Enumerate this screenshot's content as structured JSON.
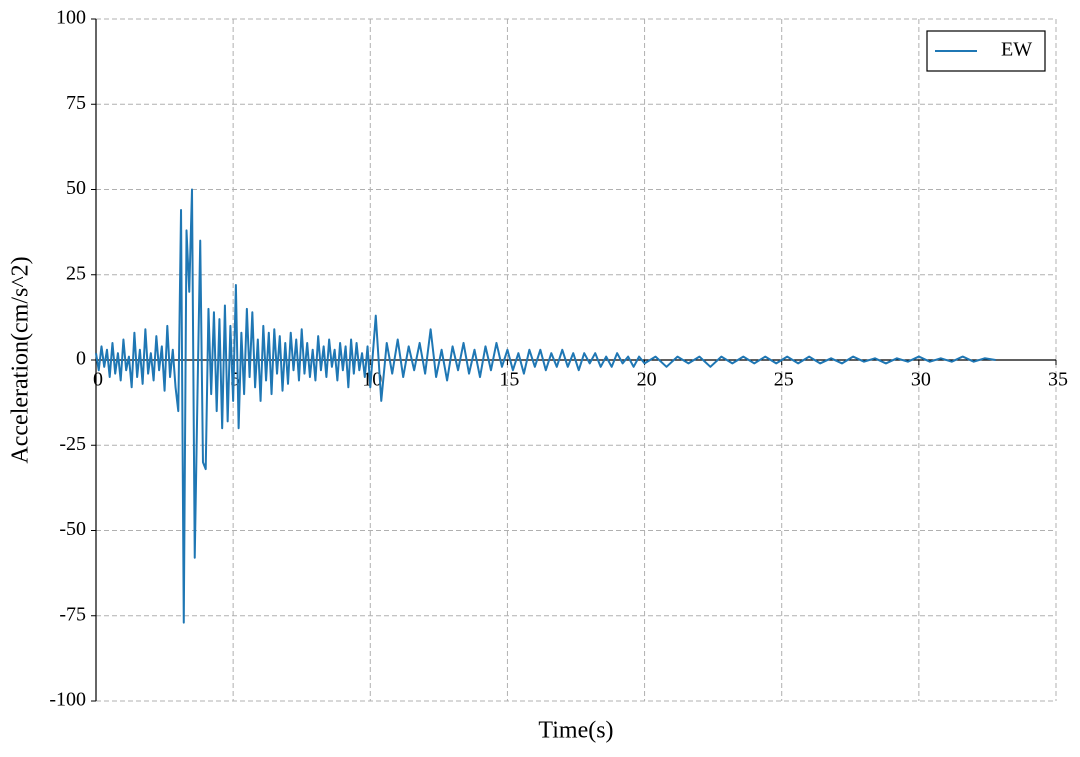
{
  "chart_data": {
    "type": "line",
    "xlabel": "Time(s)",
    "ylabel": "Acceleration(cm/s^2)",
    "x": [
      0,
      0.1,
      0.2,
      0.3,
      0.4,
      0.5,
      0.6,
      0.7,
      0.8,
      0.9,
      1.0,
      1.1,
      1.2,
      1.3,
      1.4,
      1.5,
      1.6,
      1.7,
      1.8,
      1.9,
      2.0,
      2.1,
      2.2,
      2.3,
      2.4,
      2.5,
      2.6,
      2.7,
      2.8,
      2.9,
      3.0,
      3.1,
      3.2,
      3.3,
      3.4,
      3.5,
      3.6,
      3.7,
      3.8,
      3.9,
      4.0,
      4.1,
      4.2,
      4.3,
      4.4,
      4.5,
      4.6,
      4.7,
      4.8,
      4.9,
      5.0,
      5.1,
      5.2,
      5.3,
      5.4,
      5.5,
      5.6,
      5.7,
      5.8,
      5.9,
      6.0,
      6.1,
      6.2,
      6.3,
      6.4,
      6.5,
      6.6,
      6.7,
      6.8,
      6.9,
      7.0,
      7.1,
      7.2,
      7.3,
      7.4,
      7.5,
      7.6,
      7.7,
      7.8,
      7.9,
      8.0,
      8.1,
      8.2,
      8.3,
      8.4,
      8.5,
      8.6,
      8.7,
      8.8,
      8.9,
      9.0,
      9.1,
      9.2,
      9.3,
      9.4,
      9.5,
      9.6,
      9.7,
      9.8,
      9.9,
      10.0,
      10.2,
      10.4,
      10.6,
      10.8,
      11.0,
      11.2,
      11.4,
      11.6,
      11.8,
      12.0,
      12.2,
      12.4,
      12.6,
      12.8,
      13.0,
      13.2,
      13.4,
      13.6,
      13.8,
      14.0,
      14.2,
      14.4,
      14.6,
      14.8,
      15.0,
      15.2,
      15.4,
      15.6,
      15.8,
      16.0,
      16.2,
      16.4,
      16.6,
      16.8,
      17.0,
      17.2,
      17.4,
      17.6,
      17.8,
      18.0,
      18.2,
      18.4,
      18.6,
      18.8,
      19.0,
      19.2,
      19.4,
      19.6,
      19.8,
      20.0,
      20.4,
      20.8,
      21.2,
      21.6,
      22.0,
      22.4,
      22.8,
      23.2,
      23.6,
      24.0,
      24.4,
      24.8,
      25.2,
      25.6,
      26.0,
      26.4,
      26.8,
      27.2,
      27.6,
      28.0,
      28.4,
      28.8,
      29.2,
      29.6,
      30.0,
      30.4,
      30.8,
      31.2,
      31.6,
      32.0,
      32.4,
      32.8
    ],
    "series": [
      {
        "name": "EW",
        "color": "#1f77b4",
        "values": [
          2,
          -3,
          4,
          -2,
          3,
          -5,
          5,
          -4,
          2,
          -6,
          6,
          -3,
          1,
          -8,
          8,
          -5,
          3,
          -7,
          9,
          -4,
          2,
          -6,
          7,
          -3,
          4,
          -9,
          10,
          -5,
          3,
          -8,
          -15,
          44,
          -77,
          38,
          20,
          50,
          -58,
          -10,
          35,
          -30,
          -32,
          15,
          -10,
          14,
          -15,
          12,
          -20,
          16,
          -18,
          10,
          -12,
          22,
          -20,
          8,
          -10,
          15,
          -5,
          14,
          -8,
          6,
          -12,
          10,
          -6,
          8,
          -10,
          9,
          -4,
          7,
          -9,
          5,
          -7,
          8,
          -3,
          6,
          -6,
          9,
          -4,
          5,
          -5,
          3,
          -6,
          7,
          -3,
          4,
          -5,
          6,
          -2,
          3,
          -6,
          5,
          -3,
          4,
          -8,
          6,
          -4,
          5,
          -3,
          2,
          -5,
          4,
          -8,
          13,
          -12,
          5,
          -4,
          6,
          -5,
          4,
          -3,
          5,
          -4,
          9,
          -5,
          3,
          -6,
          4,
          -3,
          5,
          -4,
          3,
          -5,
          4,
          -3,
          5,
          -2,
          3,
          -3,
          2,
          -4,
          3,
          -2,
          3,
          -3,
          2,
          -2,
          3,
          -2,
          2,
          -3,
          2,
          -1,
          2,
          -2,
          1,
          -2,
          2,
          -1,
          1,
          -2,
          1,
          -1,
          1,
          -2,
          1,
          -1,
          1,
          -2,
          1,
          -1,
          1,
          -1,
          1,
          -1,
          1,
          -1,
          1,
          -1,
          0.5,
          -1,
          1,
          -0.5,
          0.5,
          -1,
          0.5,
          -0.5,
          1,
          -0.5,
          0.5,
          -0.5,
          1,
          -0.5,
          0.5,
          0
        ]
      }
    ],
    "xlim": [
      0,
      35
    ],
    "xticks": [
      0,
      5,
      10,
      15,
      20,
      25,
      30,
      35
    ],
    "ylim": [
      -100,
      100
    ],
    "yticks": [
      100,
      75,
      50,
      25,
      0,
      -25,
      -50,
      -75,
      -100
    ],
    "grid": true,
    "legend": "upper right"
  }
}
